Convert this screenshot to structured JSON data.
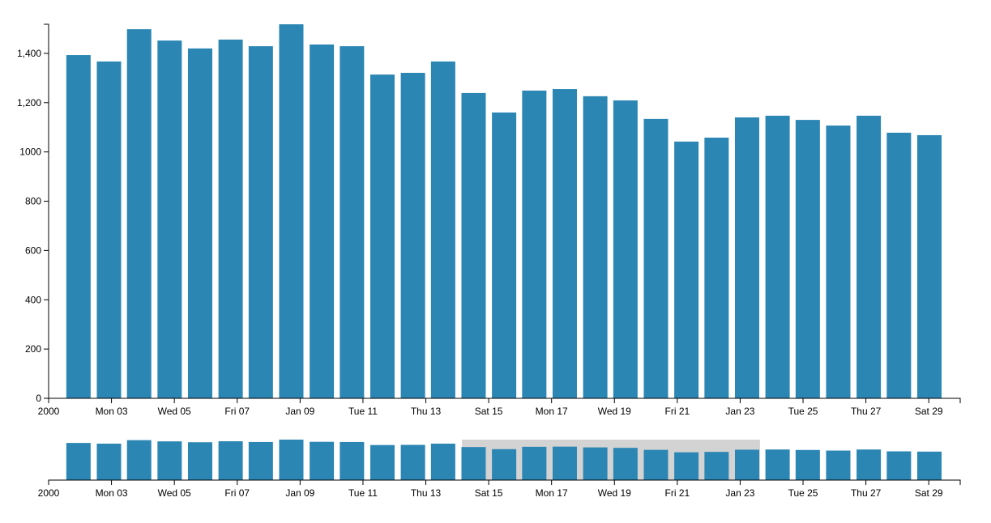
{
  "chart_data": {
    "type": "bar",
    "color": "#2b86b4",
    "x": [
      1.95,
      2.92,
      3.88,
      4.85,
      5.82,
      6.79,
      7.75,
      8.72,
      9.69,
      10.65,
      11.62,
      12.59,
      13.55,
      14.52,
      15.49,
      16.45,
      17.42,
      18.39,
      19.35,
      20.32,
      21.29,
      22.25,
      23.22,
      24.19,
      25.15,
      26.12,
      27.09,
      28.05,
      29.02
    ],
    "values": [
      1393,
      1367,
      1498,
      1452,
      1420,
      1456,
      1429,
      1518,
      1436,
      1429,
      1314,
      1321,
      1367,
      1239,
      1160,
      1249,
      1255,
      1226,
      1209,
      1134,
      1042,
      1058,
      1140,
      1147,
      1130,
      1107,
      1147,
      1078,
      1068
    ],
    "xlim": [
      1,
      30
    ],
    "xticks": [
      {
        "value": 1,
        "label": "2000"
      },
      {
        "value": 3,
        "label": "Mon 03"
      },
      {
        "value": 5,
        "label": "Wed 05"
      },
      {
        "value": 7,
        "label": "Fri 07"
      },
      {
        "value": 9,
        "label": "Jan 09"
      },
      {
        "value": 11,
        "label": "Tue 11"
      },
      {
        "value": 13,
        "label": "Thu 13"
      },
      {
        "value": 15,
        "label": "Sat 15"
      },
      {
        "value": 17,
        "label": "Mon 17"
      },
      {
        "value": 19,
        "label": "Wed 19"
      },
      {
        "value": 21,
        "label": "Fri 21"
      },
      {
        "value": 23,
        "label": "Jan 23"
      },
      {
        "value": 25,
        "label": "Tue 25"
      },
      {
        "value": 27,
        "label": "Thu 27"
      },
      {
        "value": 29,
        "label": "Sat 29"
      }
    ],
    "ylim": [
      0,
      1518
    ],
    "yticks": [
      0,
      200,
      400,
      600,
      800,
      1000,
      {
        "value": 1200,
        "label": "1,200"
      },
      {
        "value": 1400,
        "label": "1,400"
      }
    ],
    "brush": [
      14.15,
      23.63
    ]
  }
}
